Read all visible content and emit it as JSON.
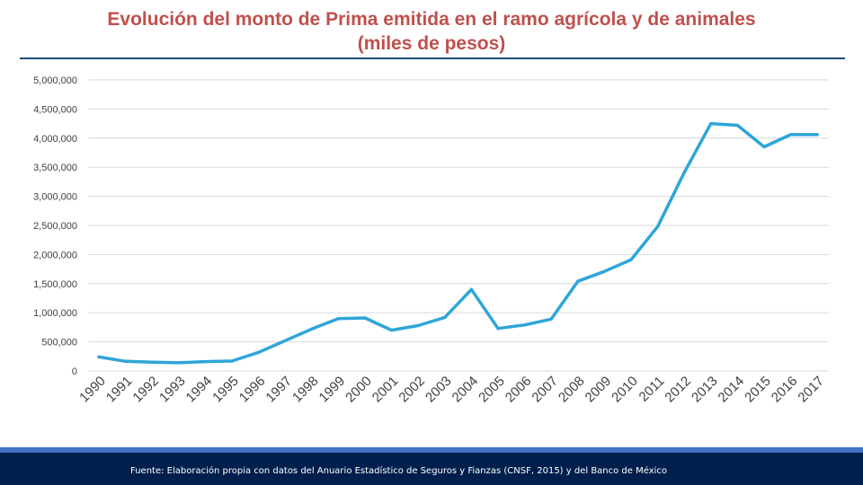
{
  "title": {
    "line1": "Evolución del monto de Prima emitida en el ramo agrícola y de animales",
    "line2": "(miles de pesos)"
  },
  "footer": {
    "source": "Fuente: Elaboración propia con datos del Anuario Estadístico de Seguros y Fianzas (CNSF, 2015) y del Banco de México"
  },
  "colors": {
    "title": "#c0504d",
    "line": "#2ea6d9",
    "grid": "#d9d9d9",
    "footer": "#001f4d"
  },
  "chart_data": {
    "type": "line",
    "title": "Evolución del monto de Prima emitida en el ramo agrícola y de animales (miles de pesos)",
    "xlabel": "",
    "ylabel": "",
    "ylim": [
      0,
      5000000
    ],
    "yticks": [
      0,
      500000,
      1000000,
      1500000,
      2000000,
      2500000,
      3000000,
      3500000,
      4000000,
      4500000,
      5000000
    ],
    "ytick_labels": [
      "0",
      "500,000",
      "1,000,000",
      "1,500,000",
      "2,000,000",
      "2,500,000",
      "3,000,000",
      "3,500,000",
      "4,000,000",
      "4,500,000",
      "5,000,000"
    ],
    "categories": [
      "1990",
      "1991",
      "1992",
      "1993",
      "1994",
      "1995",
      "1996",
      "1997",
      "1998",
      "1999",
      "2000",
      "2001",
      "2002",
      "2003",
      "2004",
      "2005",
      "2006",
      "2007",
      "2008",
      "2009",
      "2010",
      "2011",
      "2012",
      "2013",
      "2014",
      "2015",
      "2016",
      "2017"
    ],
    "series": [
      {
        "name": "Prima emitida",
        "values": [
          240000,
          165000,
          150000,
          140000,
          160000,
          170000,
          320000,
          520000,
          720000,
          900000,
          910000,
          700000,
          780000,
          920000,
          1400000,
          730000,
          790000,
          890000,
          1540000,
          1710000,
          1910000,
          2480000,
          3410000,
          4250000,
          4220000,
          3850000,
          4060000,
          4060000
        ]
      }
    ],
    "grid": true,
    "legend": "none"
  }
}
